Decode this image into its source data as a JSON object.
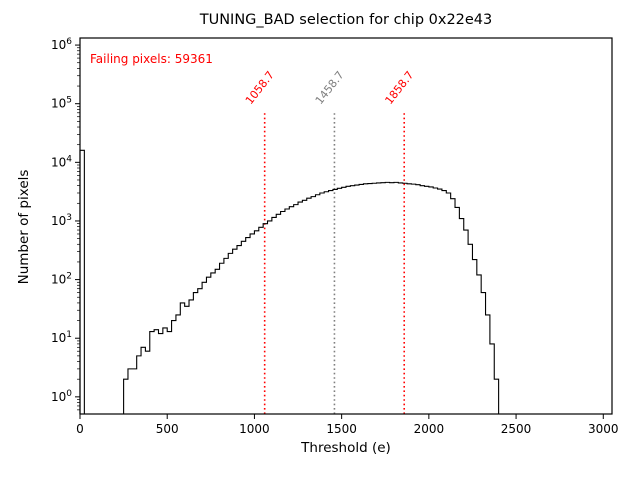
{
  "chart_data": {
    "type": "bar",
    "subtype": "step-histogram",
    "title": "TUNING_BAD selection for chip 0x22e43",
    "xlabel": "Threshold (e)",
    "ylabel": "Number of pixels",
    "yscale": "log",
    "xlim": [
      0,
      3050
    ],
    "ylim": [
      0.51,
      1320000
    ],
    "x_ticks": [
      0,
      500,
      1000,
      1500,
      2000,
      2500,
      3000
    ],
    "y_tick_exponents": [
      0,
      1,
      2,
      3,
      4,
      5,
      6
    ],
    "grid": false,
    "legend": null,
    "bin_start": 0,
    "bin_width": 25,
    "values": [
      16000,
      0,
      0,
      0,
      0,
      0,
      0,
      0,
      0,
      0,
      2,
      3,
      3,
      5,
      7,
      6,
      13,
      14,
      12,
      15,
      13,
      20,
      25,
      40,
      35,
      45,
      60,
      70,
      90,
      110,
      130,
      150,
      190,
      230,
      280,
      330,
      380,
      450,
      520,
      600,
      680,
      780,
      900,
      1000,
      1150,
      1300,
      1450,
      1600,
      1750,
      1900,
      2100,
      2250,
      2450,
      2600,
      2800,
      3000,
      3150,
      3300,
      3450,
      3600,
      3750,
      3900,
      4000,
      4100,
      4200,
      4300,
      4350,
      4400,
      4450,
      4500,
      4550,
      4500,
      4550,
      4450,
      4400,
      4300,
      4250,
      4150,
      4000,
      3900,
      3800,
      3650,
      3500,
      3300,
      3000,
      2400,
      1700,
      1100,
      700,
      400,
      220,
      120,
      60,
      25,
      8,
      2,
      0
    ],
    "vlines": [
      {
        "x": 1058.7,
        "label": "1058.7",
        "color": "#ff0000"
      },
      {
        "x": 1458.7,
        "label": "1458.7",
        "color": "#7f7f7f"
      },
      {
        "x": 1858.7,
        "label": "1858.7",
        "color": "#ff0000"
      }
    ],
    "annotations": {
      "failing_text": "Failing pixels: 59361",
      "failing_color": "#ff0000"
    },
    "colors": {
      "histogram": "#000000",
      "axes": "#000000"
    }
  }
}
